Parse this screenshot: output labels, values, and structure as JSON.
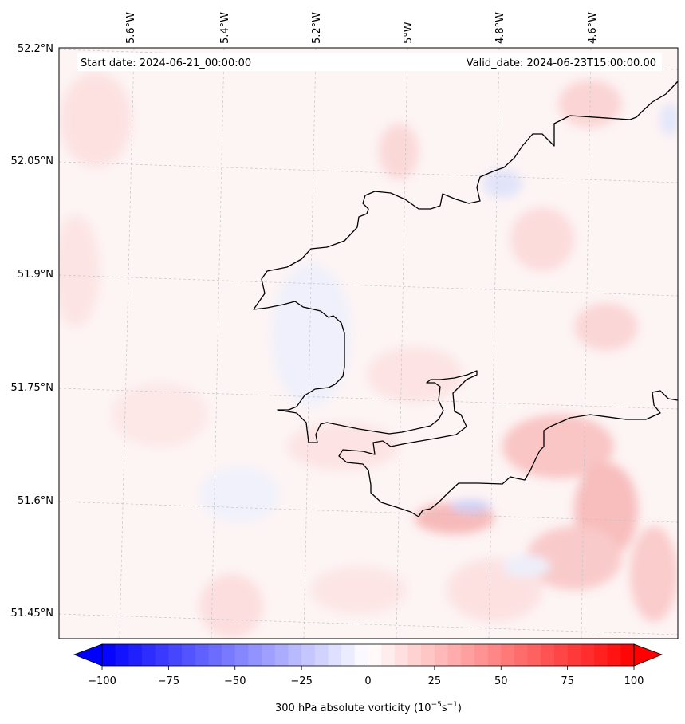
{
  "header": {
    "start_date": "Start date: 2024-06-21_00:00:00",
    "valid_date": "Valid_date: 2024-06-23T15:00:00.00"
  },
  "map": {
    "lon_labels": [
      "5.6°W",
      "5.4°W",
      "5.2°W",
      "5°W",
      "4.8°W",
      "4.6°W"
    ],
    "lat_labels": [
      "52.2°N",
      "52.05°N",
      "51.9°N",
      "51.75°N",
      "51.6°N",
      "51.45°N"
    ],
    "colors": {
      "coastline": "#000000",
      "gridline": "#b0b0b0",
      "background": "#fdf5f5"
    }
  },
  "colorbar": {
    "ticks": [
      "−100",
      "−75",
      "−50",
      "−25",
      "0",
      "25",
      "50",
      "75",
      "100"
    ],
    "label_main": "300 hPa absolute vorticity (10",
    "label_exp1": "−5",
    "label_mid": "s",
    "label_exp2": "−1",
    "label_end": ")",
    "min": -100,
    "max": 100,
    "colormap": "bwr"
  }
}
